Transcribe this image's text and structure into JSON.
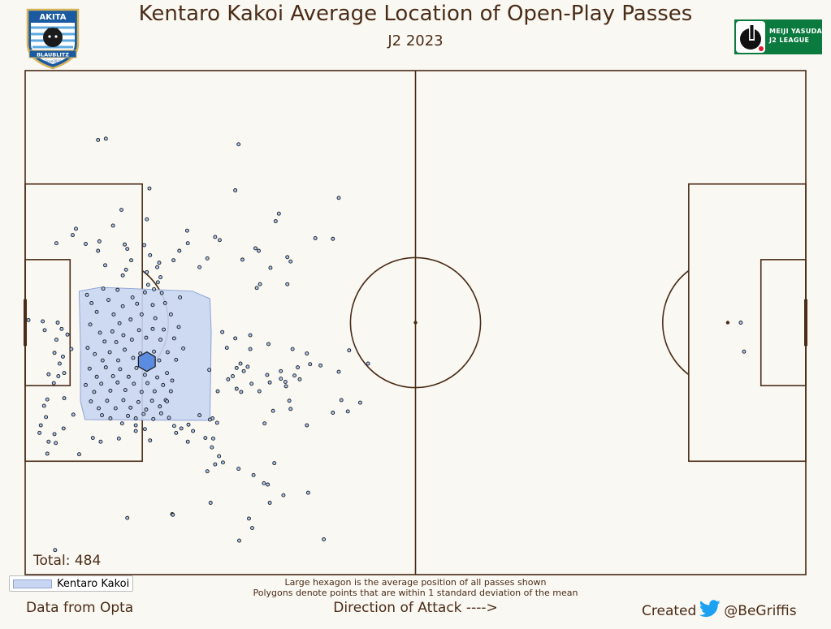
{
  "header": {
    "title": "Kentaro Kakoi Average Location of Open-Play Passes",
    "subtitle": "J2 2023"
  },
  "club_logo": {
    "name": "club-crest-icon",
    "text_top": "AKITA",
    "text_band": "BLAUBLITZ",
    "text_since": "Since2010",
    "colors": {
      "blue": "#1a5aa0",
      "light_blue": "#5da9de",
      "gold": "#d6b45a"
    }
  },
  "league_logo": {
    "name": "j2-league-logo-icon",
    "line1": "MEIJI YASUDA",
    "line2": "J2 LEAGUE",
    "color": "#0b7a3e"
  },
  "total_label": "Total: 484",
  "legend": {
    "label": "Kentaro Kakoi"
  },
  "notes": {
    "line1": "Large hexagon is the average position of all passes shown",
    "line2": "Polygons denote points that are within 1 standard deviation of the mean"
  },
  "footer": {
    "left": "Data from Opta",
    "center": "Direction of Attack ---->",
    "right_prefix": "Created",
    "right_handle": "@BeGriffis",
    "twitter_icon": "twitter-bird-icon"
  },
  "colors": {
    "background": "#faf8f3",
    "lines": "#4a2c17",
    "polygon_fill": "#c9d6f1",
    "polygon_stroke": "#8ea4d4",
    "points": "#a8c4f0",
    "hexagon": "#5b8ce0"
  },
  "chart_data": {
    "type": "scatter",
    "title": "Kentaro Kakoi Average Location of Open-Play Passes",
    "pitch": {
      "length": 120,
      "width": 80
    },
    "x_range": [
      0,
      120
    ],
    "y_range": [
      0,
      80
    ],
    "mean": {
      "x": 18.7,
      "y": 33.8
    },
    "std_polygon": [
      [
        8.3,
        45.0
      ],
      [
        11.6,
        45.6
      ],
      [
        25.7,
        45.0
      ],
      [
        28.4,
        43.8
      ],
      [
        28.6,
        38.5
      ],
      [
        28.4,
        24.5
      ],
      [
        24.7,
        24.5
      ],
      [
        9.2,
        24.6
      ],
      [
        8.5,
        27.5
      ],
      [
        8.5,
        36.0
      ]
    ],
    "points": [
      [
        11.2,
        69.0
      ],
      [
        12.4,
        69.2
      ],
      [
        32.8,
        68.3
      ],
      [
        19.1,
        61.3
      ],
      [
        32.3,
        61.0
      ],
      [
        48.2,
        59.8
      ],
      [
        14.8,
        57.9
      ],
      [
        18.7,
        56.4
      ],
      [
        39.0,
        57.3
      ],
      [
        38.5,
        56.1
      ],
      [
        13.5,
        55.4
      ],
      [
        7.3,
        53.9
      ],
      [
        7.8,
        54.9
      ],
      [
        4.8,
        52.6
      ],
      [
        9.3,
        52.5
      ],
      [
        11.4,
        52.9
      ],
      [
        15.3,
        52.4
      ],
      [
        18.3,
        52.3
      ],
      [
        24.9,
        54.6
      ],
      [
        29.2,
        53.6
      ],
      [
        29.9,
        53.1
      ],
      [
        25.0,
        52.6
      ],
      [
        44.6,
        53.4
      ],
      [
        47.3,
        53.3
      ],
      [
        23.7,
        51.4
      ],
      [
        15.7,
        51.7
      ],
      [
        11.2,
        51.4
      ],
      [
        19.2,
        50.7
      ],
      [
        35.9,
        51.4
      ],
      [
        16.3,
        49.9
      ],
      [
        22.8,
        49.9
      ],
      [
        28.0,
        50.2
      ],
      [
        35.4,
        51.8
      ],
      [
        40.3,
        50.4
      ],
      [
        20.3,
        48.8
      ],
      [
        40.8,
        49.7
      ],
      [
        33.4,
        50.0
      ],
      [
        37.7,
        48.7
      ],
      [
        26.8,
        48.8
      ],
      [
        12.3,
        49.1
      ],
      [
        15.5,
        48.4
      ],
      [
        18.7,
        48.0
      ],
      [
        36.1,
        46.1
      ],
      [
        40.3,
        46.1
      ],
      [
        20.6,
        49.5
      ],
      [
        15.0,
        47.5
      ],
      [
        20.8,
        47.2
      ],
      [
        35.6,
        45.5
      ],
      [
        0.5,
        40.4
      ],
      [
        2.7,
        40.2
      ],
      [
        3.0,
        38.8
      ],
      [
        5.0,
        40.0
      ],
      [
        5.6,
        39.0
      ],
      [
        4.8,
        37.3
      ],
      [
        6.5,
        38.1
      ],
      [
        4.5,
        35.2
      ],
      [
        5.8,
        34.6
      ],
      [
        5.3,
        33.5
      ],
      [
        7.1,
        35.8
      ],
      [
        6.0,
        32.0
      ],
      [
        3.6,
        31.8
      ],
      [
        4.4,
        30.4
      ],
      [
        6.0,
        28.0
      ],
      [
        2.9,
        26.8
      ],
      [
        3.4,
        27.8
      ],
      [
        5.1,
        31.5
      ],
      [
        7.4,
        25.4
      ],
      [
        3.2,
        25.0
      ],
      [
        5.9,
        23.2
      ],
      [
        2.4,
        23.7
      ],
      [
        4.5,
        22.3
      ],
      [
        3.6,
        21.1
      ],
      [
        2.2,
        22.5
      ],
      [
        4.7,
        20.9
      ],
      [
        3.4,
        19.2
      ],
      [
        8.3,
        19.1
      ],
      [
        10.4,
        21.7
      ],
      [
        11.6,
        21.1
      ],
      [
        14.4,
        21.6
      ],
      [
        14.9,
        24.0
      ],
      [
        17.0,
        23.7
      ],
      [
        18.4,
        23.1
      ],
      [
        17.0,
        22.8
      ],
      [
        19.2,
        21.3
      ],
      [
        21.6,
        27.7
      ],
      [
        23.2,
        22.5
      ],
      [
        22.9,
        23.6
      ],
      [
        25.1,
        23.8
      ],
      [
        24.0,
        23.2
      ],
      [
        26.8,
        25.3
      ],
      [
        28.8,
        24.8
      ],
      [
        28.4,
        24.6
      ],
      [
        27.7,
        21.7
      ],
      [
        25.0,
        21.1
      ],
      [
        25.8,
        22.8
      ],
      [
        29.5,
        24.1
      ],
      [
        28.9,
        21.6
      ],
      [
        28.7,
        20.2
      ],
      [
        29.8,
        18.8
      ],
      [
        29.2,
        17.5
      ],
      [
        28.0,
        16.4
      ],
      [
        30.4,
        17.8
      ],
      [
        32.8,
        16.8
      ],
      [
        35.1,
        15.8
      ],
      [
        36.7,
        14.5
      ],
      [
        38.3,
        17.7
      ],
      [
        37.3,
        14.3
      ],
      [
        39.7,
        12.6
      ],
      [
        37.6,
        11.4
      ],
      [
        43.5,
        13.0
      ],
      [
        28.5,
        11.4
      ],
      [
        22.6,
        9.6
      ],
      [
        22.7,
        9.5
      ],
      [
        15.7,
        9.0
      ],
      [
        34.4,
        8.9
      ],
      [
        34.9,
        7.4
      ],
      [
        32.9,
        5.4
      ],
      [
        45.9,
        5.6
      ],
      [
        4.6,
        3.9
      ],
      [
        28.3,
        32.5
      ],
      [
        29.6,
        29.1
      ],
      [
        31.2,
        31.0
      ],
      [
        31.9,
        31.5
      ],
      [
        33.6,
        32.3
      ],
      [
        34.8,
        30.3
      ],
      [
        32.5,
        29.5
      ],
      [
        33.2,
        29.0
      ],
      [
        36.0,
        29.1
      ],
      [
        37.2,
        31.7
      ],
      [
        37.6,
        30.5
      ],
      [
        39.3,
        31.1
      ],
      [
        40.1,
        29.9
      ],
      [
        41.4,
        31.6
      ],
      [
        41.9,
        32.9
      ],
      [
        42.2,
        31.0
      ],
      [
        40.0,
        30.6
      ],
      [
        39.3,
        32.3
      ],
      [
        40.6,
        27.6
      ],
      [
        40.8,
        26.3
      ],
      [
        38.1,
        26.0
      ],
      [
        32.5,
        32.8
      ],
      [
        33.1,
        33.5
      ],
      [
        34.2,
        33.0
      ],
      [
        34.6,
        35.8
      ],
      [
        32.3,
        37.5
      ],
      [
        31.0,
        36.0
      ],
      [
        30.3,
        38.5
      ],
      [
        34.6,
        38.0
      ],
      [
        37.4,
        36.6
      ],
      [
        41.1,
        35.8
      ],
      [
        43.3,
        35.1
      ],
      [
        43.8,
        33.4
      ],
      [
        45.4,
        33.2
      ],
      [
        48.2,
        32.2
      ],
      [
        49.8,
        35.6
      ],
      [
        52.7,
        33.5
      ],
      [
        51.5,
        27.3
      ],
      [
        48.6,
        27.7
      ],
      [
        47.3,
        25.7
      ],
      [
        49.6,
        25.9
      ],
      [
        43.3,
        23.7
      ],
      [
        36.8,
        24.0
      ],
      [
        110.0,
        40.0
      ],
      [
        110.5,
        35.4
      ],
      [
        9.5,
        44.4
      ],
      [
        10.2,
        43.1
      ],
      [
        11.0,
        41.7
      ],
      [
        12.8,
        43.6
      ],
      [
        13.6,
        41.3
      ],
      [
        14.5,
        39.9
      ],
      [
        15.0,
        42.6
      ],
      [
        16.2,
        40.5
      ],
      [
        17.2,
        43.0
      ],
      [
        17.9,
        41.3
      ],
      [
        18.4,
        44.8
      ],
      [
        19.6,
        42.8
      ],
      [
        20.0,
        40.7
      ],
      [
        21.5,
        43.1
      ],
      [
        22.4,
        41.3
      ],
      [
        10.0,
        39.7
      ],
      [
        11.5,
        38.4
      ],
      [
        12.2,
        37.0
      ],
      [
        13.4,
        38.6
      ],
      [
        14.0,
        36.9
      ],
      [
        15.1,
        38.0
      ],
      [
        16.4,
        37.3
      ],
      [
        17.5,
        38.8
      ],
      [
        18.6,
        37.6
      ],
      [
        19.6,
        39.0
      ],
      [
        20.8,
        37.3
      ],
      [
        21.3,
        38.9
      ],
      [
        22.9,
        37.5
      ],
      [
        23.6,
        39.3
      ],
      [
        9.6,
        36.0
      ],
      [
        10.7,
        35.0
      ],
      [
        11.9,
        34.0
      ],
      [
        13.0,
        35.3
      ],
      [
        14.3,
        34.0
      ],
      [
        15.3,
        35.7
      ],
      [
        16.6,
        34.4
      ],
      [
        17.7,
        35.1
      ],
      [
        19.8,
        35.4
      ],
      [
        20.6,
        34.0
      ],
      [
        21.9,
        35.3
      ],
      [
        23.2,
        34.1
      ],
      [
        24.3,
        35.9
      ],
      [
        9.9,
        32.7
      ],
      [
        11.0,
        31.4
      ],
      [
        12.4,
        32.9
      ],
      [
        13.5,
        31.5
      ],
      [
        14.6,
        32.6
      ],
      [
        15.9,
        31.4
      ],
      [
        17.1,
        32.8
      ],
      [
        18.4,
        31.7
      ],
      [
        19.3,
        32.9
      ],
      [
        20.3,
        31.3
      ],
      [
        21.8,
        32.0
      ],
      [
        22.6,
        30.8
      ],
      [
        9.3,
        30.1
      ],
      [
        10.6,
        29.0
      ],
      [
        11.7,
        30.3
      ],
      [
        13.1,
        29.2
      ],
      [
        14.2,
        30.5
      ],
      [
        15.4,
        29.3
      ],
      [
        16.7,
        30.3
      ],
      [
        17.9,
        29.0
      ],
      [
        18.8,
        30.4
      ],
      [
        19.9,
        29.1
      ],
      [
        21.2,
        30.1
      ],
      [
        22.4,
        29.1
      ],
      [
        10.1,
        27.5
      ],
      [
        11.3,
        26.4
      ],
      [
        12.6,
        27.6
      ],
      [
        13.9,
        26.4
      ],
      [
        15.1,
        27.7
      ],
      [
        16.2,
        26.5
      ],
      [
        17.4,
        27.4
      ],
      [
        18.6,
        26.2
      ],
      [
        19.5,
        27.6
      ],
      [
        20.7,
        26.7
      ],
      [
        21.8,
        27.5
      ],
      [
        11.8,
        25.3
      ],
      [
        13.1,
        24.8
      ],
      [
        15.8,
        25.2
      ],
      [
        17.0,
        24.8
      ],
      [
        18.2,
        25.5
      ],
      [
        19.7,
        24.7
      ],
      [
        20.9,
        25.6
      ],
      [
        22.1,
        24.9
      ],
      [
        16.5,
        44.0
      ],
      [
        18.9,
        46.0
      ],
      [
        20.4,
        46.4
      ],
      [
        19.8,
        45.3
      ],
      [
        21.0,
        44.7
      ],
      [
        23.8,
        44.0
      ],
      [
        14.2,
        45.2
      ],
      [
        12.0,
        45.4
      ]
    ]
  }
}
